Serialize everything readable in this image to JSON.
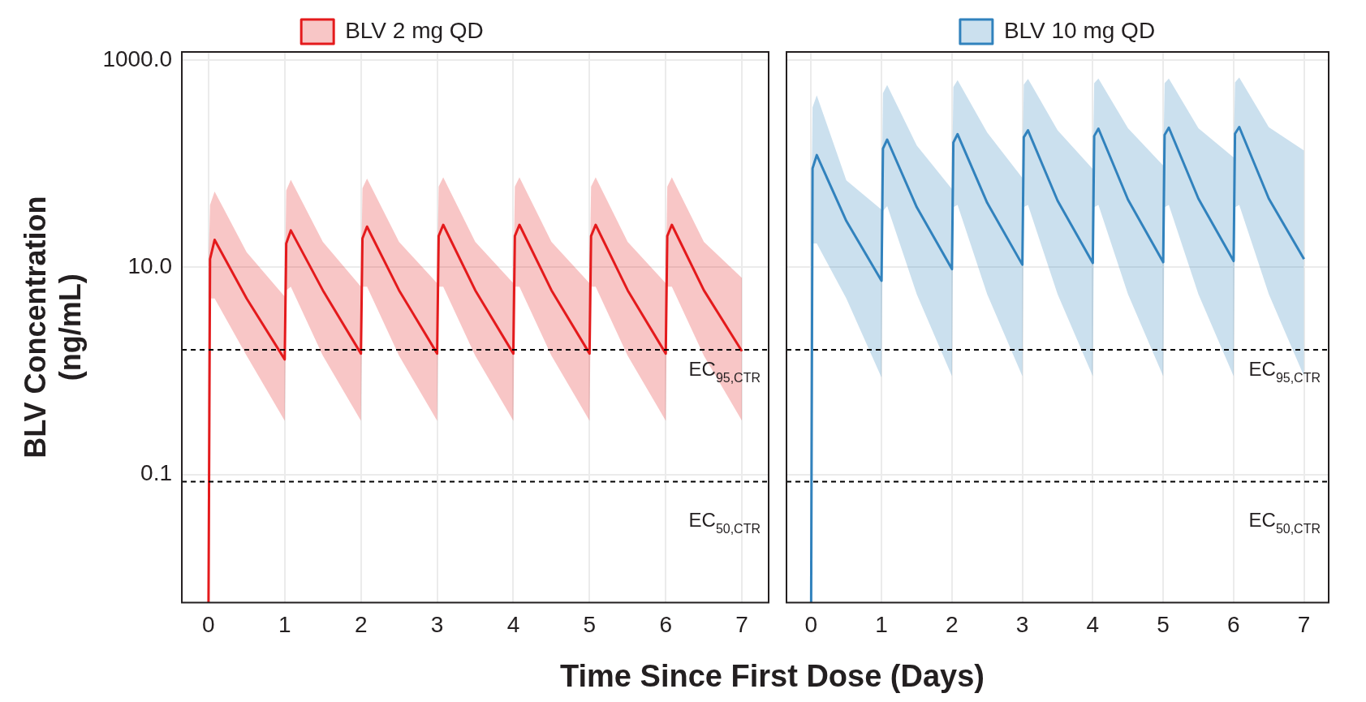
{
  "chart_data": [
    {
      "type": "line",
      "ylabel": "BLV Concentration\n(ng/mL)",
      "xlabel": "Time Since First Dose (Days)",
      "log": "y",
      "grid": true,
      "legend": "top",
      "marker": "none",
      "line_style": "solid",
      "xlim": [
        -0.35,
        7.35
      ],
      "xticks": [
        0,
        1,
        2,
        3,
        4,
        5,
        6,
        7
      ],
      "ylim": [
        0.0058,
        1200
      ],
      "yticks": [
        {
          "value": 0.1,
          "label": "0.1"
        },
        {
          "value": 10,
          "label": "10.0"
        },
        {
          "value": 1000,
          "label": "1000.0"
        }
      ],
      "x": [
        0,
        0.02,
        0.08,
        0.5,
        1,
        1.02,
        1.08,
        1.5,
        2,
        2.02,
        2.08,
        2.5,
        3,
        3.02,
        3.08,
        3.5,
        4,
        4.02,
        4.08,
        4.5,
        5,
        5.02,
        5.08,
        5.5,
        6,
        6.02,
        6.08,
        6.5,
        7
      ],
      "series": [
        {
          "name": "BLV 2 mg QD",
          "color": "#e41a1c",
          "values": [
            0.0058,
            12,
            18.4,
            5.0,
            1.29,
            17,
            22.7,
            6.0,
            1.47,
            19,
            24.7,
            6.0,
            1.47,
            20,
            25.7,
            6.0,
            1.47,
            20,
            25.7,
            6.0,
            1.47,
            20,
            25.7,
            6.0,
            1.47,
            20,
            25.7,
            6.0,
            1.55
          ],
          "upper": [
            10,
            40,
            54,
            14,
            5.2,
            55,
            70,
            17.6,
            6.5,
            58,
            72,
            17.6,
            7.0,
            60,
            74,
            17.6,
            7.0,
            60,
            74,
            17.6,
            7.0,
            60,
            74,
            17.6,
            7.0,
            60,
            74,
            17.6,
            7.9
          ],
          "lower": [
            5.0,
            5.0,
            5.0,
            1.4,
            0.33,
            6.0,
            6.5,
            1.4,
            0.33,
            6.5,
            6.5,
            1.4,
            0.33,
            6.5,
            6.5,
            1.4,
            0.33,
            6.5,
            6.5,
            1.4,
            0.33,
            6.5,
            6.5,
            1.4,
            0.33,
            6.5,
            6.5,
            1.4,
            0.33
          ]
        }
      ],
      "ref_lines": [
        {
          "axis": "y",
          "value": 1.6,
          "label": "EC$_{95,CTR}$",
          "color": "#000000",
          "line_style": "dashed"
        },
        {
          "axis": "y",
          "value": 0.085,
          "label": "EC$_{50,CTR}$",
          "color": "#000000",
          "line_style": "dashed"
        }
      ]
    },
    {
      "type": "line",
      "log": "y",
      "grid": true,
      "legend": "top",
      "marker": "none",
      "line_style": "solid",
      "tick_labels": "x",
      "xlim": [
        -0.35,
        7.35
      ],
      "xticks": [
        0,
        1,
        2,
        3,
        4,
        5,
        6,
        7
      ],
      "ylim": [
        0.0058,
        1200
      ],
      "yticks": [
        {
          "value": 0.1,
          "label": null
        },
        {
          "value": 10,
          "label": null
        },
        {
          "value": 1000,
          "label": null
        }
      ],
      "x": [
        0,
        0.02,
        0.08,
        0.5,
        1,
        1.02,
        1.08,
        1.5,
        2,
        2.02,
        2.08,
        2.5,
        3,
        3.02,
        3.08,
        3.5,
        4,
        4.02,
        4.08,
        4.5,
        5,
        5.02,
        5.08,
        5.5,
        6,
        6.02,
        6.08,
        6.5,
        7
      ],
      "series": [
        {
          "name": "BLV 10 mg QD",
          "color": "#3182bd",
          "values": [
            0.0058,
            90,
            121,
            28,
            7.4,
            140,
            171,
            38,
            9.6,
            160,
            193,
            42,
            10.6,
            180,
            210,
            44,
            11,
            185,
            218,
            45,
            11.2,
            190,
            223,
            46,
            11.5,
            195,
            226,
            46,
            12
          ],
          "upper": [
            20,
            350,
            458,
            69,
            36,
            480,
            575,
            150,
            57,
            550,
            640,
            200,
            73,
            580,
            660,
            210,
            89,
            600,
            664,
            220,
            96,
            600,
            664,
            220,
            115,
            610,
            680,
            225,
            134
          ],
          "lower": [
            17,
            17,
            17,
            5,
            0.86,
            35,
            39,
            5.5,
            0.89,
            38,
            40,
            5.5,
            0.89,
            38,
            40,
            5.5,
            0.89,
            38,
            40,
            5.5,
            0.89,
            38,
            40,
            5.5,
            0.89,
            38,
            40,
            5.5,
            0.89
          ]
        }
      ],
      "ref_lines": [
        {
          "axis": "y",
          "value": 1.6,
          "label": "EC$_{95,CTR}$",
          "color": "#000000",
          "line_style": "dashed"
        },
        {
          "axis": "y",
          "value": 0.085,
          "label": "EC$_{50,CTR}$",
          "color": "#000000",
          "line_style": "dashed"
        }
      ]
    }
  ]
}
